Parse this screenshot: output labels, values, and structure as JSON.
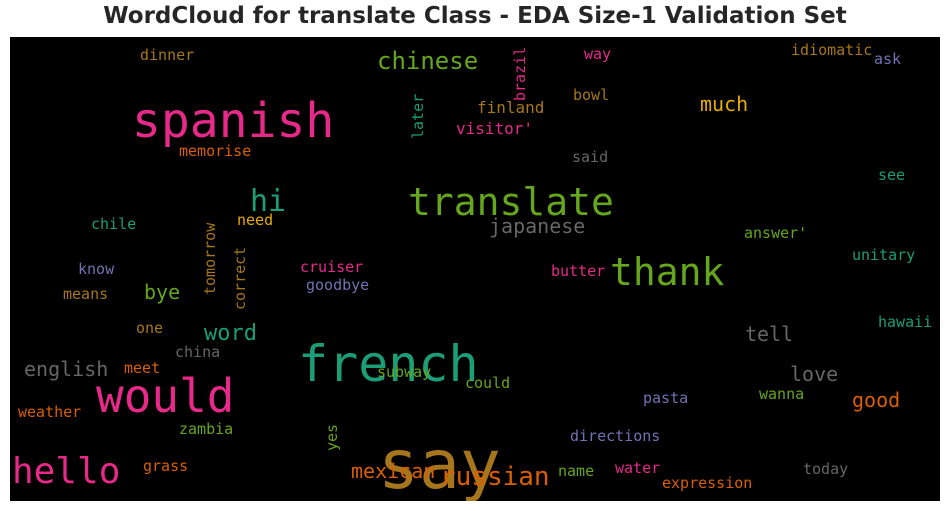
{
  "title": "WordCloud for translate Class - EDA Size-1 Validation Set",
  "chart_data": {
    "type": "wordcloud",
    "background": "#000000",
    "words": [
      {
        "text": "say",
        "color": "#a6761d"
      },
      {
        "text": "french",
        "color": "#1b9e77"
      },
      {
        "text": "spanish",
        "color": "#e7298a"
      },
      {
        "text": "would",
        "color": "#e7298a"
      },
      {
        "text": "translate",
        "color": "#66a61e"
      },
      {
        "text": "thank",
        "color": "#66a61e"
      },
      {
        "text": "hello",
        "color": "#e7298a"
      },
      {
        "text": "russian",
        "color": "#d95f02"
      },
      {
        "text": "chinese",
        "color": "#66a61e"
      },
      {
        "text": "hi",
        "color": "#1b9e77"
      },
      {
        "text": "word",
        "color": "#1b9e77"
      },
      {
        "text": "japanese",
        "color": "#666666"
      },
      {
        "text": "english",
        "color": "#666666"
      },
      {
        "text": "mexican",
        "color": "#d95f02"
      },
      {
        "text": "much",
        "color": "#e6ab02"
      },
      {
        "text": "tell",
        "color": "#666666"
      },
      {
        "text": "love",
        "color": "#666666"
      },
      {
        "text": "good",
        "color": "#d95f02"
      },
      {
        "text": "bye",
        "color": "#66a61e"
      },
      {
        "text": "tomorrow",
        "color": "#a6761d"
      },
      {
        "text": "correct",
        "color": "#a6761d"
      },
      {
        "text": "later",
        "color": "#1b9e77"
      },
      {
        "text": "brazil",
        "color": "#e7298a"
      },
      {
        "text": "finland",
        "color": "#a6761d"
      },
      {
        "text": "visitor'",
        "color": "#e7298a"
      },
      {
        "text": "bowl",
        "color": "#a6761d"
      },
      {
        "text": "way",
        "color": "#e7298a"
      },
      {
        "text": "idiomatic",
        "color": "#a6761d"
      },
      {
        "text": "ask",
        "color": "#7570b3"
      },
      {
        "text": "dinner",
        "color": "#a6761d"
      },
      {
        "text": "memorise",
        "color": "#d95f02"
      },
      {
        "text": "said",
        "color": "#666666"
      },
      {
        "text": "see",
        "color": "#1b9e77"
      },
      {
        "text": "need",
        "color": "#e6ab02"
      },
      {
        "text": "chile",
        "color": "#1b9e77"
      },
      {
        "text": "answer'",
        "color": "#66a61e"
      },
      {
        "text": "unitary",
        "color": "#1b9e77"
      },
      {
        "text": "know",
        "color": "#7570b3"
      },
      {
        "text": "cruiser",
        "color": "#e7298a"
      },
      {
        "text": "goodbye",
        "color": "#7570b3"
      },
      {
        "text": "butter",
        "color": "#e7298a"
      },
      {
        "text": "means",
        "color": "#a6761d"
      },
      {
        "text": "one",
        "color": "#a6761d"
      },
      {
        "text": "china",
        "color": "#666666"
      },
      {
        "text": "hawaii",
        "color": "#1b9e77"
      },
      {
        "text": "meet",
        "color": "#d95f02"
      },
      {
        "text": "subway",
        "color": "#66a61e"
      },
      {
        "text": "could",
        "color": "#66a61e"
      },
      {
        "text": "wanna",
        "color": "#66a61e"
      },
      {
        "text": "pasta",
        "color": "#7570b3"
      },
      {
        "text": "weather",
        "color": "#d95f02"
      },
      {
        "text": "zambia",
        "color": "#66a61e"
      },
      {
        "text": "yes",
        "color": "#66a61e"
      },
      {
        "text": "directions",
        "color": "#7570b3"
      },
      {
        "text": "grass",
        "color": "#d95f02"
      },
      {
        "text": "name",
        "color": "#66a61e"
      },
      {
        "text": "water",
        "color": "#e7298a"
      },
      {
        "text": "today",
        "color": "#666666"
      },
      {
        "text": "expression",
        "color": "#d95f02"
      }
    ]
  }
}
